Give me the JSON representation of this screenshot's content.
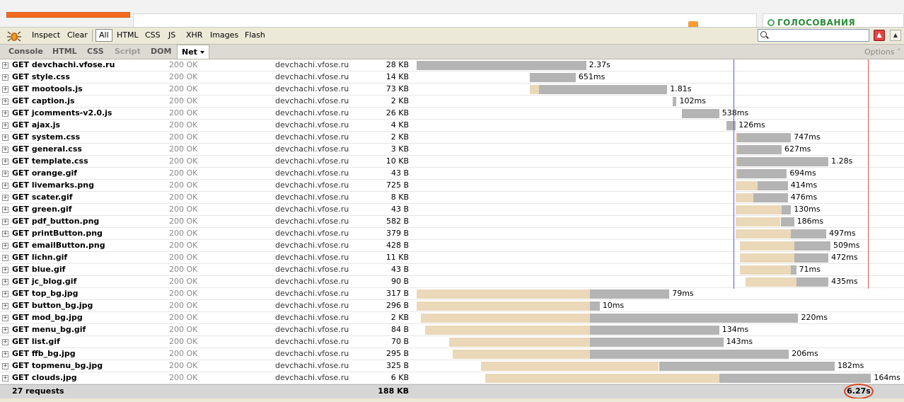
{
  "page": {
    "header_text": "ГОЛОСОВАНИЯ"
  },
  "toolbar": {
    "inspect": "Inspect",
    "clear": "Clear",
    "filters": [
      "All",
      "HTML",
      "CSS",
      "JS",
      "XHR",
      "Images",
      "Flash"
    ],
    "active_filter": "All",
    "search_value": ""
  },
  "tabs": {
    "items": [
      "Console",
      "HTML",
      "CSS",
      "Script",
      "DOM",
      "Net"
    ],
    "disabled": [
      "Script"
    ],
    "active": "Net",
    "options": "Options"
  },
  "colors": {
    "wait": "#ead8b9",
    "load": "#b4b4b4",
    "domcontent_line": "#5b5bd6",
    "load_line": "#e05858",
    "highlight": "#d8431e"
  },
  "timeline": {
    "total_seconds": 6.27,
    "domcontentloaded_s": 3.05,
    "load_s": 4.34
  },
  "requests": [
    {
      "name": "GET devchachi.vfose.ru",
      "status": "200 OK",
      "domain": "devchachi.vfose.ru",
      "size": "28 KB",
      "start": 0.0,
      "wait": 0.0,
      "load": 1.63,
      "time": "2.37s"
    },
    {
      "name": "GET style.css",
      "status": "200 OK",
      "domain": "devchachi.vfose.ru",
      "size": "14 KB",
      "start": 1.09,
      "wait": 0.0,
      "load": 0.44,
      "time": "651ms"
    },
    {
      "name": "GET mootools.js",
      "status": "200 OK",
      "domain": "devchachi.vfose.ru",
      "size": "73 KB",
      "start": 1.09,
      "wait": 0.09,
      "load": 1.23,
      "time": "1.81s"
    },
    {
      "name": "GET caption.js",
      "status": "200 OK",
      "domain": "devchachi.vfose.ru",
      "size": "2 KB",
      "start": 2.46,
      "wait": 0.0,
      "load": 0.04,
      "time": "102ms"
    },
    {
      "name": "GET jcomments-v2.0.js",
      "status": "200 OK",
      "domain": "devchachi.vfose.ru",
      "size": "26 KB",
      "start": 2.55,
      "wait": 0.0,
      "load": 0.36,
      "time": "538ms"
    },
    {
      "name": "GET ajax.js",
      "status": "200 OK",
      "domain": "devchachi.vfose.ru",
      "size": "4 KB",
      "start": 2.98,
      "wait": 0.0,
      "load": 0.09,
      "time": "126ms"
    },
    {
      "name": "GET system.css",
      "status": "200 OK",
      "domain": "devchachi.vfose.ru",
      "size": "2 KB",
      "start": 3.07,
      "wait": 0.01,
      "load": 0.52,
      "time": "747ms"
    },
    {
      "name": "GET general.css",
      "status": "200 OK",
      "domain": "devchachi.vfose.ru",
      "size": "3 KB",
      "start": 3.07,
      "wait": 0.01,
      "load": 0.43,
      "time": "627ms"
    },
    {
      "name": "GET template.css",
      "status": "200 OK",
      "domain": "devchachi.vfose.ru",
      "size": "10 KB",
      "start": 3.07,
      "wait": 0.01,
      "load": 0.88,
      "time": "1.28s"
    },
    {
      "name": "GET orange.gif",
      "status": "200 OK",
      "domain": "devchachi.vfose.ru",
      "size": "43 B",
      "start": 3.07,
      "wait": 0.01,
      "load": 0.48,
      "time": "694ms"
    },
    {
      "name": "GET livemarks.png",
      "status": "200 OK",
      "domain": "devchachi.vfose.ru",
      "size": "725 B",
      "start": 3.07,
      "wait": 0.21,
      "load": 0.29,
      "time": "414ms"
    },
    {
      "name": "GET scater.gif",
      "status": "200 OK",
      "domain": "devchachi.vfose.ru",
      "size": "8 KB",
      "start": 3.07,
      "wait": 0.17,
      "load": 0.33,
      "time": "476ms"
    },
    {
      "name": "GET green.gif",
      "status": "200 OK",
      "domain": "devchachi.vfose.ru",
      "size": "43 B",
      "start": 3.07,
      "wait": 0.44,
      "load": 0.09,
      "time": "130ms"
    },
    {
      "name": "GET pdf_button.png",
      "status": "200 OK",
      "domain": "devchachi.vfose.ru",
      "size": "582 B",
      "start": 3.07,
      "wait": 0.43,
      "load": 0.13,
      "time": "186ms"
    },
    {
      "name": "GET printButton.png",
      "status": "200 OK",
      "domain": "devchachi.vfose.ru",
      "size": "379 B",
      "start": 3.07,
      "wait": 0.53,
      "load": 0.34,
      "time": "497ms"
    },
    {
      "name": "GET emailButton.png",
      "status": "200 OK",
      "domain": "devchachi.vfose.ru",
      "size": "428 B",
      "start": 3.11,
      "wait": 0.52,
      "load": 0.35,
      "time": "509ms"
    },
    {
      "name": "GET lichn.gif",
      "status": "200 OK",
      "domain": "devchachi.vfose.ru",
      "size": "11 KB",
      "start": 3.11,
      "wait": 0.52,
      "load": 0.33,
      "time": "472ms"
    },
    {
      "name": "GET blue.gif",
      "status": "200 OK",
      "domain": "devchachi.vfose.ru",
      "size": "43 B",
      "start": 3.11,
      "wait": 0.49,
      "load": 0.05,
      "time": "71ms"
    },
    {
      "name": "GET jc_blog.gif",
      "status": "200 OK",
      "domain": "devchachi.vfose.ru",
      "size": "90 B",
      "start": 3.16,
      "wait": 0.49,
      "load": 0.31,
      "time": "435ms"
    },
    {
      "name": "GET top_bg.jpg",
      "status": "200 OK",
      "domain": "devchachi.vfose.ru",
      "size": "317 B",
      "start": 0.0,
      "wait": 1.67,
      "load": 0.76,
      "time": "79ms"
    },
    {
      "name": "GET button_bg.jpg",
      "status": "200 OK",
      "domain": "devchachi.vfose.ru",
      "size": "296 B",
      "start": 0.0,
      "wait": 1.67,
      "load": 0.09,
      "time": "10ms"
    },
    {
      "name": "GET mod_bg.jpg",
      "status": "200 OK",
      "domain": "devchachi.vfose.ru",
      "size": "2 KB",
      "start": 0.04,
      "wait": 1.63,
      "load": 2.0,
      "time": "220ms"
    },
    {
      "name": "GET menu_bg.gif",
      "status": "200 OK",
      "domain": "devchachi.vfose.ru",
      "size": "84 B",
      "start": 0.08,
      "wait": 1.59,
      "load": 1.24,
      "time": "134ms"
    },
    {
      "name": "GET list.gif",
      "status": "200 OK",
      "domain": "devchachi.vfose.ru",
      "size": "70 B",
      "start": 0.31,
      "wait": 1.36,
      "load": 1.28,
      "time": "143ms"
    },
    {
      "name": "GET ffb_bg.jpg",
      "status": "200 OK",
      "domain": "devchachi.vfose.ru",
      "size": "295 B",
      "start": 0.35,
      "wait": 1.32,
      "load": 1.91,
      "time": "206ms"
    },
    {
      "name": "GET topmenu_bg.jpg",
      "status": "200 OK",
      "domain": "devchachi.vfose.ru",
      "size": "325 B",
      "start": 0.62,
      "wait": 1.71,
      "load": 1.69,
      "time": "182ms"
    },
    {
      "name": "GET clouds.jpg",
      "status": "200 OK",
      "domain": "devchachi.vfose.ru",
      "size": "6 KB",
      "start": 0.66,
      "wait": 2.25,
      "load": 1.46,
      "time": "164ms"
    }
  ],
  "footer": {
    "requests": "27 requests",
    "total_size": "188 KB",
    "total_time": "6.27s"
  }
}
